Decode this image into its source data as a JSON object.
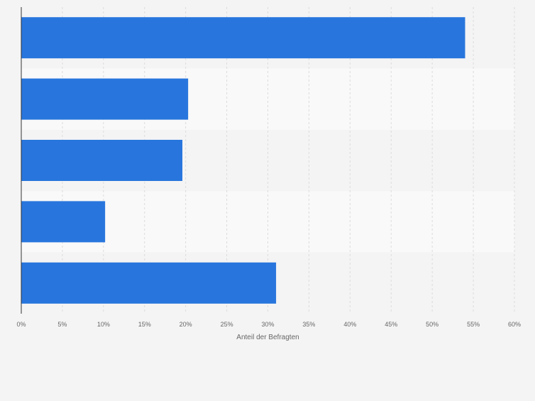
{
  "chart_data": {
    "type": "bar",
    "orientation": "horizontal",
    "categories": [
      "",
      "",
      "",
      "",
      ""
    ],
    "values": [
      54,
      20.3,
      19.6,
      10.2,
      31
    ],
    "xlabel": "Anteil der Befragten",
    "ylabel": "",
    "xlim": [
      0,
      60
    ],
    "ticks": [
      0,
      5,
      10,
      15,
      20,
      25,
      30,
      35,
      40,
      45,
      50,
      55,
      60
    ],
    "tick_labels": [
      "0%",
      "5%",
      "10%",
      "15%",
      "20%",
      "25%",
      "30%",
      "35%",
      "40%",
      "45%",
      "50%",
      "55%",
      "60%"
    ],
    "grid": true,
    "legend": "none",
    "colors": {
      "bar": "#2876dd",
      "band_light": "#f9f9f9",
      "band_dark": "#f4f4f5",
      "grid": "#dcdcdc",
      "axis": "#333333",
      "text": "#666666"
    }
  }
}
